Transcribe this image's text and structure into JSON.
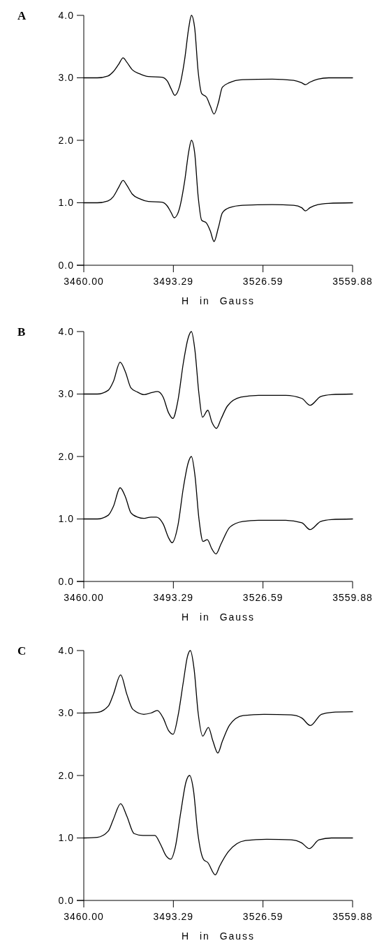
{
  "chart_data": [
    {
      "type": "line",
      "title": "A",
      "xlabel": "H in Gauss",
      "xlim": [
        3460,
        3559.88
      ],
      "ylim": [
        0,
        4
      ],
      "xticks": [
        {
          "value": 3460,
          "label": "3460.00"
        },
        {
          "value": 3493.29,
          "label": "3493.29"
        },
        {
          "value": 3526.59,
          "label": "3526.59"
        },
        {
          "value": 3559.88,
          "label": "3559.88"
        }
      ],
      "yticks": [
        {
          "value": 0,
          "label": "0.0"
        },
        {
          "value": 1,
          "label": "1.0"
        },
        {
          "value": 2,
          "label": "2.0"
        },
        {
          "value": 3,
          "label": "3.0"
        },
        {
          "value": 4,
          "label": "4.0"
        }
      ],
      "series": [
        {
          "color": "#000000",
          "x": [
            3460,
            3465,
            3469,
            3471,
            3473,
            3474.6,
            3476,
            3478,
            3481,
            3484,
            3489,
            3491,
            3492.5,
            3493.8,
            3495.5,
            3497.5,
            3499,
            3500,
            3501.2,
            3502.5,
            3503.8,
            3505.6,
            3507,
            3508.4,
            3510,
            3511.5,
            3514,
            3519,
            3530,
            3538,
            3541,
            3542.4,
            3544,
            3547,
            3551,
            3559.88
          ],
          "values": [
            3.0,
            3.0,
            3.03,
            3.1,
            3.22,
            3.32,
            3.25,
            3.13,
            3.06,
            3.02,
            3.01,
            2.95,
            2.82,
            2.72,
            2.85,
            3.3,
            3.8,
            4.0,
            3.8,
            3.1,
            2.75,
            2.69,
            2.55,
            2.42,
            2.6,
            2.85,
            2.92,
            2.97,
            2.98,
            2.96,
            2.92,
            2.89,
            2.93,
            2.98,
            3.0,
            3.0
          ]
        },
        {
          "color": "#000000",
          "x": [
            3460,
            3465,
            3469,
            3471,
            3473,
            3474.6,
            3476,
            3478,
            3481,
            3484,
            3489,
            3491,
            3492.5,
            3493.6,
            3495.5,
            3497.5,
            3499,
            3500,
            3501.2,
            3502.5,
            3503.8,
            3505.5,
            3507,
            3508.4,
            3510,
            3511.5,
            3514,
            3519,
            3530,
            3538,
            3541,
            3542.4,
            3544,
            3547,
            3551,
            3559.88
          ],
          "values": [
            1.0,
            1.0,
            1.03,
            1.1,
            1.25,
            1.36,
            1.28,
            1.14,
            1.06,
            1.02,
            1.01,
            0.95,
            0.84,
            0.76,
            0.9,
            1.35,
            1.82,
            2.0,
            1.8,
            1.1,
            0.72,
            0.68,
            0.55,
            0.38,
            0.6,
            0.84,
            0.92,
            0.96,
            0.97,
            0.96,
            0.92,
            0.87,
            0.92,
            0.97,
            0.99,
            1.0
          ]
        }
      ]
    },
    {
      "type": "line",
      "title": "B",
      "xlabel": "H in Gauss",
      "xlim": [
        3460,
        3559.88
      ],
      "ylim": [
        0,
        4
      ],
      "xticks": [
        {
          "value": 3460,
          "label": "3460.00"
        },
        {
          "value": 3493.29,
          "label": "3493.29"
        },
        {
          "value": 3526.59,
          "label": "3526.59"
        },
        {
          "value": 3559.88,
          "label": "3559.88"
        }
      ],
      "yticks": [
        {
          "value": 0,
          "label": "0.0"
        },
        {
          "value": 1,
          "label": "1.0"
        },
        {
          "value": 2,
          "label": "2.0"
        },
        {
          "value": 3,
          "label": "3.0"
        },
        {
          "value": 4,
          "label": "4.0"
        }
      ],
      "series": [
        {
          "color": "#000000",
          "x": [
            3460,
            3465,
            3469.1,
            3471,
            3473.5,
            3475.5,
            3477.5,
            3480,
            3482.4,
            3485,
            3487.4,
            3489.5,
            3491.5,
            3493.1,
            3495,
            3497,
            3498.8,
            3500,
            3501.3,
            3502.8,
            3504.1,
            3506.1,
            3507.6,
            3509.3,
            3511,
            3513.4,
            3518.4,
            3525,
            3535,
            3541,
            3544.1,
            3548,
            3552,
            3559.88
          ],
          "values": [
            3.0,
            3.0,
            3.06,
            3.2,
            3.51,
            3.35,
            3.1,
            3.03,
            2.99,
            3.02,
            3.04,
            2.95,
            2.7,
            2.61,
            2.9,
            3.5,
            3.9,
            4.0,
            3.7,
            3.0,
            2.63,
            2.74,
            2.55,
            2.45,
            2.6,
            2.81,
            2.95,
            2.98,
            2.98,
            2.93,
            2.82,
            2.96,
            2.99,
            3.0
          ]
        },
        {
          "color": "#000000",
          "x": [
            3460,
            3465,
            3469.1,
            3471,
            3473.5,
            3475.5,
            3477.5,
            3480,
            3482.4,
            3485,
            3487,
            3489.5,
            3491.5,
            3492.8,
            3495,
            3497,
            3498.8,
            3500,
            3501.3,
            3502.8,
            3504.3,
            3505.9,
            3507.6,
            3509.1,
            3511,
            3514.3,
            3519,
            3525,
            3535,
            3541,
            3544.1,
            3548,
            3552,
            3559.88
          ],
          "values": [
            1.0,
            1.0,
            1.06,
            1.2,
            1.5,
            1.35,
            1.1,
            1.03,
            1.01,
            1.03,
            1.03,
            0.92,
            0.7,
            0.62,
            0.9,
            1.5,
            1.9,
            2.0,
            1.7,
            1.0,
            0.64,
            0.67,
            0.52,
            0.44,
            0.6,
            0.87,
            0.96,
            0.98,
            0.98,
            0.94,
            0.83,
            0.96,
            0.99,
            1.0
          ]
        }
      ]
    },
    {
      "type": "line",
      "title": "C",
      "xlabel": "H in Gauss",
      "xlim": [
        3460,
        3559.88
      ],
      "ylim": [
        0,
        4
      ],
      "xticks": [
        {
          "value": 3460,
          "label": "3460.00"
        },
        {
          "value": 3493.29,
          "label": "3493.29"
        },
        {
          "value": 3526.59,
          "label": "3526.59"
        },
        {
          "value": 3559.88,
          "label": "3559.88"
        }
      ],
      "yticks": [
        {
          "value": 0,
          "label": "0.0"
        },
        {
          "value": 1,
          "label": "1.0"
        },
        {
          "value": 2,
          "label": "2.0"
        },
        {
          "value": 3,
          "label": "3.0"
        },
        {
          "value": 4,
          "label": "4.0"
        }
      ],
      "series": [
        {
          "color": "#000000",
          "x": [
            3460,
            3465,
            3469.1,
            3471,
            3473.7,
            3476,
            3478.2,
            3482.3,
            3485,
            3487.3,
            3489.5,
            3491.5,
            3493.2,
            3495,
            3497,
            3498.5,
            3499.6,
            3501,
            3502.5,
            3504.2,
            3506.3,
            3508,
            3509.8,
            3511.5,
            3514.2,
            3519.2,
            3527,
            3537,
            3541,
            3544.2,
            3548.3,
            3552,
            3559.88
          ],
          "values": [
            3.0,
            3.01,
            3.11,
            3.3,
            3.61,
            3.3,
            3.06,
            2.98,
            3.0,
            3.04,
            2.92,
            2.72,
            2.66,
            2.95,
            3.5,
            3.9,
            4.0,
            3.7,
            3.0,
            2.63,
            2.77,
            2.55,
            2.36,
            2.55,
            2.81,
            2.96,
            2.98,
            2.97,
            2.92,
            2.8,
            2.98,
            3.01,
            3.02
          ]
        },
        {
          "color": "#000000",
          "x": [
            3460,
            3465,
            3469.1,
            3471,
            3473.7,
            3476,
            3478.7,
            3482,
            3486.4,
            3488.5,
            3490.5,
            3492.3,
            3494,
            3496,
            3498,
            3499.3,
            3500.8,
            3502.3,
            3504.6,
            3506,
            3508.9,
            3510.5,
            3513.7,
            3520.1,
            3528,
            3537,
            3541,
            3543.8,
            3547.4,
            3552,
            3559.88
          ],
          "values": [
            1.0,
            1.01,
            1.11,
            1.3,
            1.55,
            1.35,
            1.07,
            1.04,
            1.04,
            0.9,
            0.72,
            0.66,
            0.85,
            1.4,
            1.9,
            2.0,
            1.75,
            1.1,
            0.65,
            0.61,
            0.41,
            0.55,
            0.78,
            0.96,
            0.98,
            0.97,
            0.92,
            0.83,
            0.97,
            1.0,
            1.0
          ]
        }
      ]
    }
  ]
}
